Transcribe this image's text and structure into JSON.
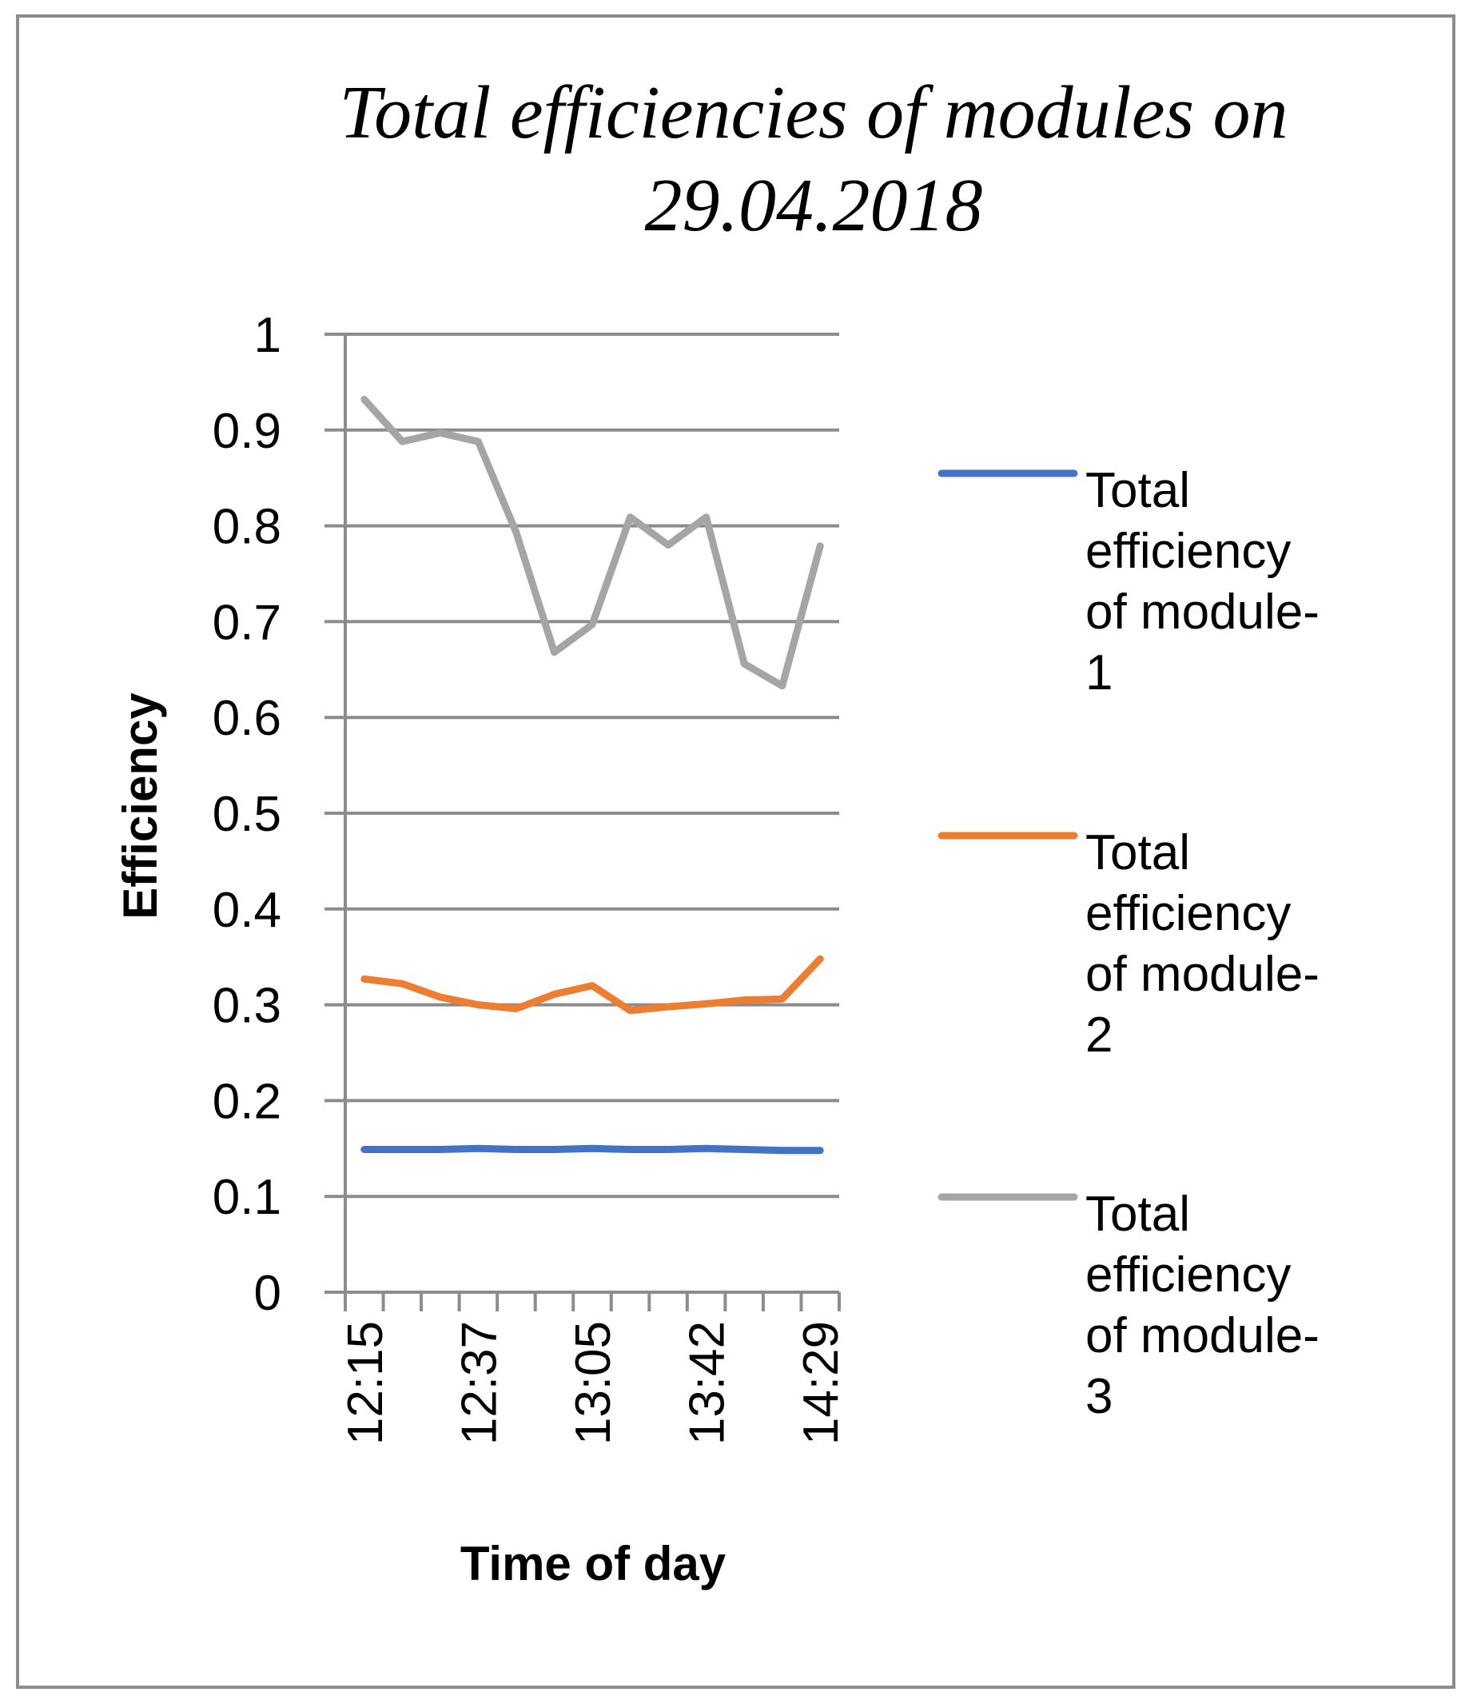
{
  "chart_data": {
    "type": "line",
    "title_lines": [
      "Total efficiencies of modules on",
      "29.04.2018"
    ],
    "xlabel": "Time of day",
    "ylabel": "Efficiency",
    "ylim": [
      0,
      1
    ],
    "y_ticks": [
      "0",
      "0.1",
      "0.2",
      "0.3",
      "0.4",
      "0.5",
      "0.6",
      "0.7",
      "0.8",
      "0.9",
      "1"
    ],
    "x_tick_labels": [
      "12:15",
      "12:37",
      "13:05",
      "13:42",
      "14:29"
    ],
    "x_count": 13,
    "x_labeled_indices": [
      0,
      3,
      6,
      9,
      12
    ],
    "grid": "horizontal",
    "legend_position": "right",
    "series": [
      {
        "name": "Total efficiency of module-1",
        "legend_lines": [
          "Total",
          "efficiency",
          "of module-",
          "1"
        ],
        "color": "#4472C4",
        "values": [
          0.149,
          0.149,
          0.149,
          0.15,
          0.149,
          0.149,
          0.15,
          0.149,
          0.149,
          0.15,
          0.149,
          0.148,
          0.148
        ]
      },
      {
        "name": "Total efficiency of module-2",
        "legend_lines": [
          "Total",
          "efficiency",
          "of module-",
          "2"
        ],
        "color": "#ED7D31",
        "values": [
          0.327,
          0.322,
          0.308,
          0.3,
          0.296,
          0.311,
          0.32,
          0.294,
          0.298,
          0.301,
          0.305,
          0.306,
          0.348
        ]
      },
      {
        "name": "Total efficiency of module-3",
        "legend_lines": [
          "Total",
          "efficiency",
          "of module-",
          "3"
        ],
        "color": "#A5A5A5",
        "values": [
          0.932,
          0.888,
          0.897,
          0.888,
          0.793,
          0.668,
          0.697,
          0.809,
          0.78,
          0.809,
          0.656,
          0.633,
          0.779
        ]
      }
    ]
  }
}
